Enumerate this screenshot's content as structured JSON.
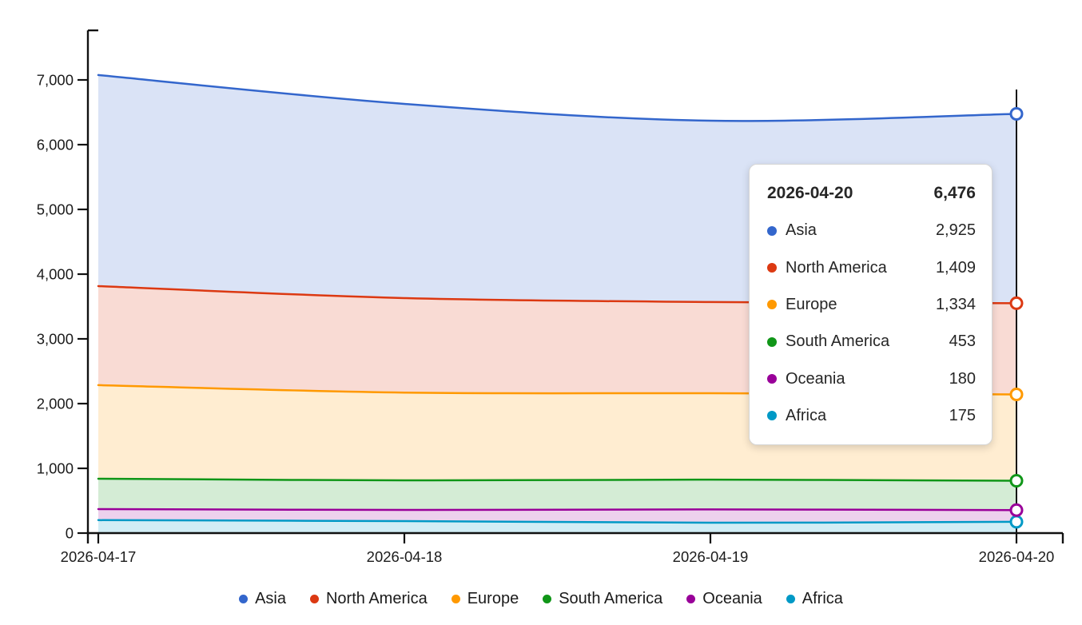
{
  "chart_data": {
    "type": "area",
    "stacked": true,
    "title": "",
    "xlabel": "",
    "ylabel": "",
    "grid": false,
    "legend_position": "bottom",
    "x_labels": [
      "2026-04-17",
      "2026-04-18",
      "2026-04-19",
      "2026-04-20"
    ],
    "y_tick_labels": [
      "0",
      "1,000",
      "2,000",
      "3,000",
      "4,000",
      "5,000",
      "6,000",
      "7,000"
    ],
    "y_tick_values": [
      0,
      1000,
      2000,
      3000,
      4000,
      5000,
      6000,
      7000
    ],
    "ylim": [
      0,
      7765
    ],
    "series_stack_bottom_to_top": [
      {
        "name": "Africa",
        "color": "#0099c6",
        "values": [
          200,
          185,
          160,
          175
        ]
      },
      {
        "name": "Oceania",
        "color": "#990099",
        "values": [
          170,
          173,
          205,
          180
        ]
      },
      {
        "name": "South America",
        "color": "#109618",
        "values": [
          470,
          457,
          460,
          453
        ]
      },
      {
        "name": "Europe",
        "color": "#ff9900",
        "values": [
          1445,
          1355,
          1335,
          1334
        ]
      },
      {
        "name": "North America",
        "color": "#dc3912",
        "values": [
          1530,
          1460,
          1410,
          1409
        ]
      },
      {
        "name": "Asia",
        "color": "#3366cc",
        "values": [
          3260,
          3000,
          2800,
          2925
        ]
      }
    ],
    "hover": {
      "index": 3,
      "label": "2026-04-20",
      "total": 6476
    }
  },
  "tooltip": {
    "date": "2026-04-20",
    "total": "6,476",
    "rows": [
      {
        "label": "Asia",
        "value": "2,925",
        "color": "#3366cc"
      },
      {
        "label": "North America",
        "value": "1,409",
        "color": "#dc3912"
      },
      {
        "label": "Europe",
        "value": "1,334",
        "color": "#ff9900"
      },
      {
        "label": "South America",
        "value": "453",
        "color": "#109618"
      },
      {
        "label": "Oceania",
        "value": "180",
        "color": "#990099"
      },
      {
        "label": "Africa",
        "value": "175",
        "color": "#0099c6"
      }
    ]
  },
  "legend": {
    "items": [
      {
        "label": "Asia",
        "color": "#3366cc"
      },
      {
        "label": "North America",
        "color": "#dc3912"
      },
      {
        "label": "Europe",
        "color": "#ff9900"
      },
      {
        "label": "South America",
        "color": "#109618"
      },
      {
        "label": "Oceania",
        "color": "#990099"
      },
      {
        "label": "Africa",
        "color": "#0099c6"
      }
    ]
  },
  "colors": {
    "axis": "#111111",
    "text": "#1b1b1b",
    "crosshair": "#111111",
    "background": "#ffffff",
    "area_fill_opacity": 0.18
  }
}
